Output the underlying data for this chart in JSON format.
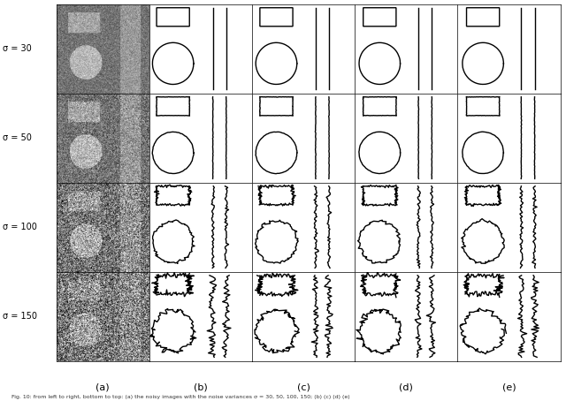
{
  "sigma_labels": [
    "σ = 30",
    "σ = 50",
    "σ = 100",
    "σ = 150"
  ],
  "col_labels": [
    "(a)",
    "(b)",
    "(c)",
    "(d)",
    "(e)"
  ],
  "caption": "Fig. 10: from left to right, bottom to top: (a) the noisy images with the noise variances σ = 30, 50, 100, 150; (b) (c) (d",
  "bg_color": "#ffffff",
  "noisy_bg": "#888888",
  "grid_color": "#000000",
  "n_rows": 4,
  "n_cols": 5,
  "figsize": [
    6.4,
    4.54
  ],
  "dpi": 100
}
